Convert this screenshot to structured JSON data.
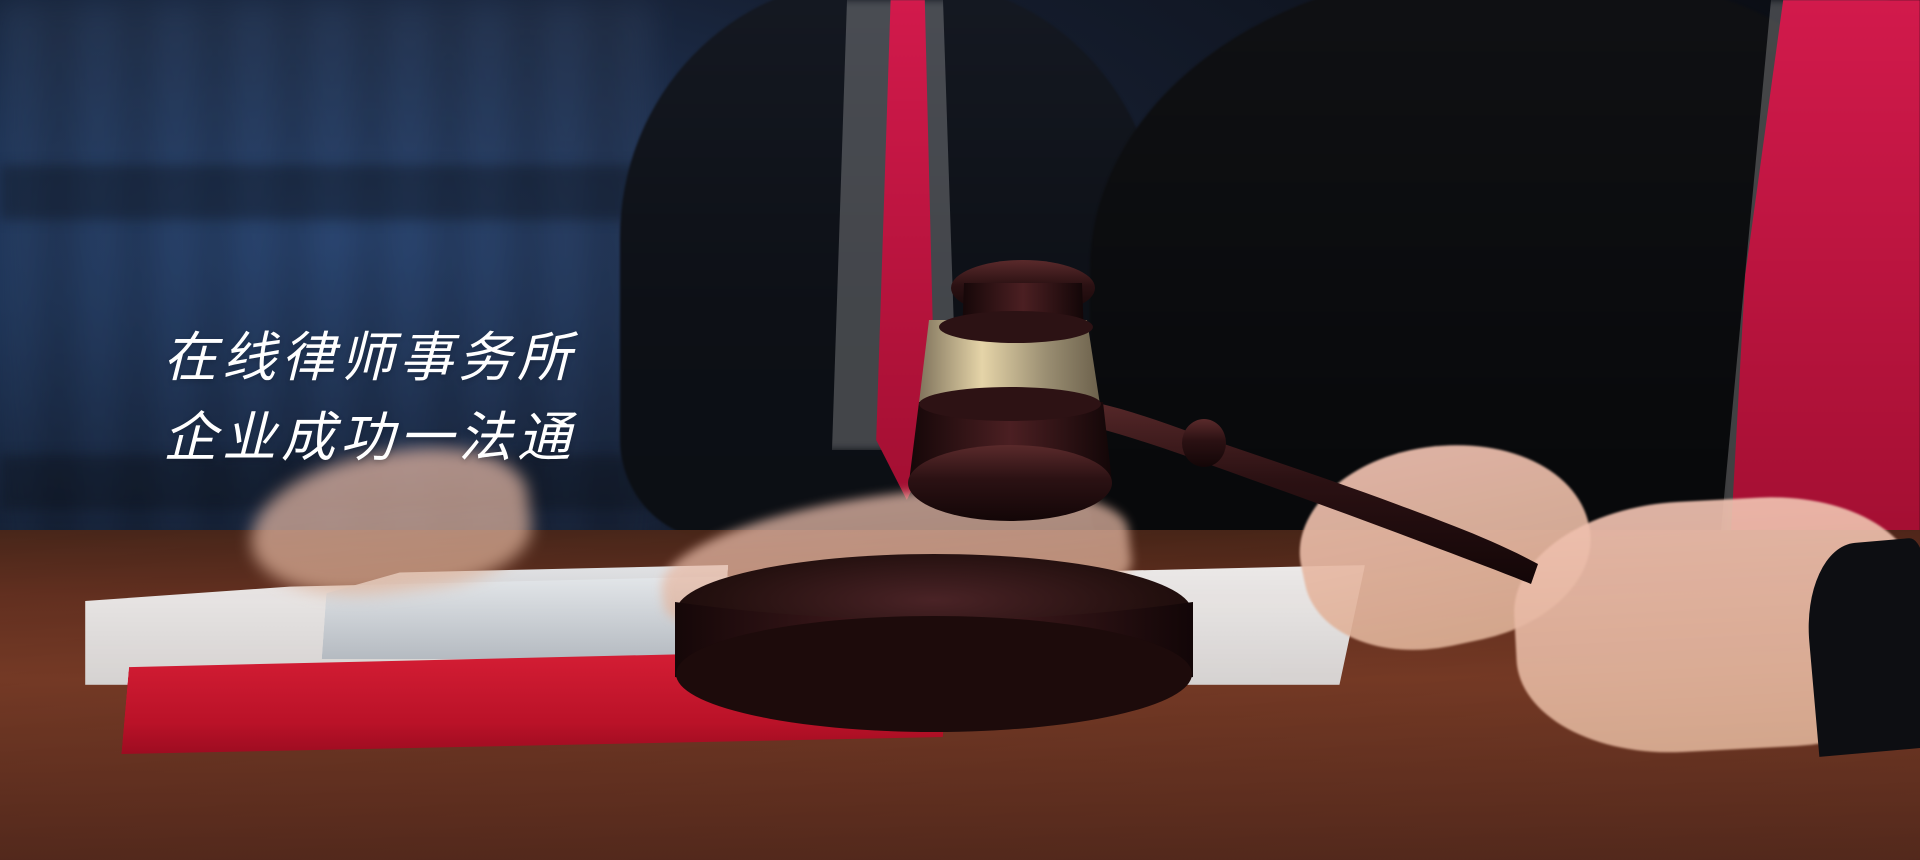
{
  "hero": {
    "headline_line_1": "在线律师事务所",
    "headline_line_2": "企业成功一法通"
  },
  "palette": {
    "accent_red": "#C8183B",
    "wood": "#7B3D28",
    "headline": "#FFFFFF"
  },
  "icons": [
    "gavel-icon"
  ]
}
